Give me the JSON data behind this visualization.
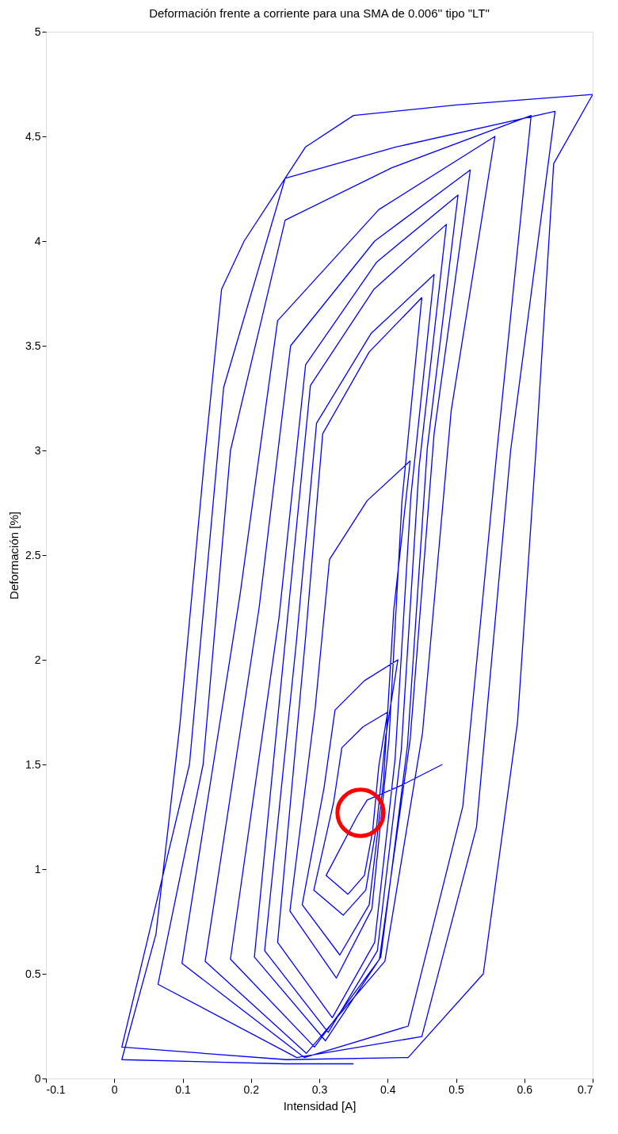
{
  "chart_data": {
    "type": "line",
    "title": "Deformación frente a corriente para una SMA de 0.006'' tipo \"LT\"",
    "xlabel": "Intensidad [A]",
    "ylabel": "Deformación [%]",
    "xlim": [
      -0.1,
      0.7
    ],
    "xticks": [
      -0.1,
      0,
      0.1,
      0.2,
      0.3,
      0.4,
      0.5,
      0.6,
      0.7
    ],
    "ylim": [
      0,
      5
    ],
    "yticks": [
      0,
      0.5,
      1,
      1.5,
      2,
      2.5,
      3,
      3.5,
      4,
      4.5,
      5
    ],
    "grid": false,
    "marker": "none",
    "line_style": "solid",
    "series": [
      {
        "color": "#0000ff",
        "x": [
          0.48,
          0.42,
          0.37,
          0.355,
          0.31,
          0.342,
          0.366,
          0.378,
          0.387,
          0.4,
          0.364,
          0.333,
          0.321,
          0.292,
          0.335,
          0.368,
          0.384,
          0.397,
          0.415,
          0.366,
          0.323,
          0.307,
          0.275,
          0.33,
          0.373,
          0.394,
          0.409,
          0.433,
          0.37,
          0.315,
          0.294,
          0.257,
          0.325,
          0.377,
          0.402,
          0.421,
          0.45,
          0.373,
          0.305,
          0.28,
          0.239,
          0.319,
          0.381,
          0.411,
          0.434,
          0.468,
          0.376,
          0.296,
          0.266,
          0.22,
          0.313,
          0.385,
          0.42,
          0.446,
          0.486,
          0.38,
          0.287,
          0.252,
          0.205,
          0.309,
          0.39,
          0.429,
          0.458,
          0.503,
          0.384,
          0.28,
          0.241,
          0.17,
          0.293,
          0.388,
          0.433,
          0.468,
          0.521,
          0.381,
          0.258,
          0.212,
          0.133,
          0.281,
          0.396,
          0.451,
          0.493,
          0.557,
          0.387,
          0.239,
          0.184,
          0.099,
          0.278,
          0.43,
          0.51,
          0.56,
          0.61,
          0.406,
          0.25,
          0.17,
          0.13,
          0.064,
          0.267,
          0.45,
          0.53,
          0.58,
          0.645,
          0.413,
          0.25,
          0.16,
          0.11,
          0.011,
          0.252,
          0.43,
          0.54,
          0.59,
          0.617,
          0.643,
          0.7,
          0.5,
          0.35,
          0.28,
          0.19,
          0.157,
          0.132,
          0.096,
          0.061,
          0.011,
          0.25,
          0.35
        ],
        "values": [
          1.5,
          1.4,
          1.33,
          1.25,
          0.97,
          0.88,
          0.97,
          1.18,
          1.49,
          1.75,
          1.68,
          1.58,
          1.32,
          0.9,
          0.78,
          0.9,
          1.21,
          1.63,
          2.0,
          1.9,
          1.76,
          1.39,
          0.83,
          0.59,
          0.83,
          1.42,
          2.24,
          2.95,
          2.76,
          2.48,
          1.77,
          0.8,
          0.48,
          0.81,
          1.62,
          2.76,
          3.73,
          3.47,
          3.08,
          2.11,
          0.65,
          0.29,
          0.65,
          1.53,
          2.78,
          3.84,
          3.56,
          3.13,
          2.07,
          0.61,
          0.22,
          0.61,
          1.57,
          2.92,
          4.08,
          3.77,
          3.31,
          2.15,
          0.58,
          0.18,
          0.58,
          1.59,
          3.01,
          4.22,
          3.9,
          3.41,
          2.2,
          0.57,
          0.15,
          0.57,
          1.62,
          3.08,
          4.34,
          4.0,
          3.5,
          2.25,
          0.56,
          0.12,
          0.56,
          1.65,
          3.19,
          4.5,
          4.15,
          3.62,
          2.31,
          0.55,
          0.1,
          0.25,
          1.3,
          3.0,
          4.6,
          4.35,
          4.1,
          3.0,
          1.5,
          0.45,
          0.1,
          0.2,
          1.2,
          3.0,
          4.62,
          4.45,
          4.3,
          3.3,
          1.5,
          0.15,
          0.09,
          0.1,
          0.5,
          1.7,
          3.0,
          4.37,
          4.7,
          4.65,
          4.6,
          4.45,
          4.0,
          3.77,
          2.96,
          1.69,
          0.69,
          0.09,
          0.07,
          0.07
        ]
      }
    ]
  }
}
